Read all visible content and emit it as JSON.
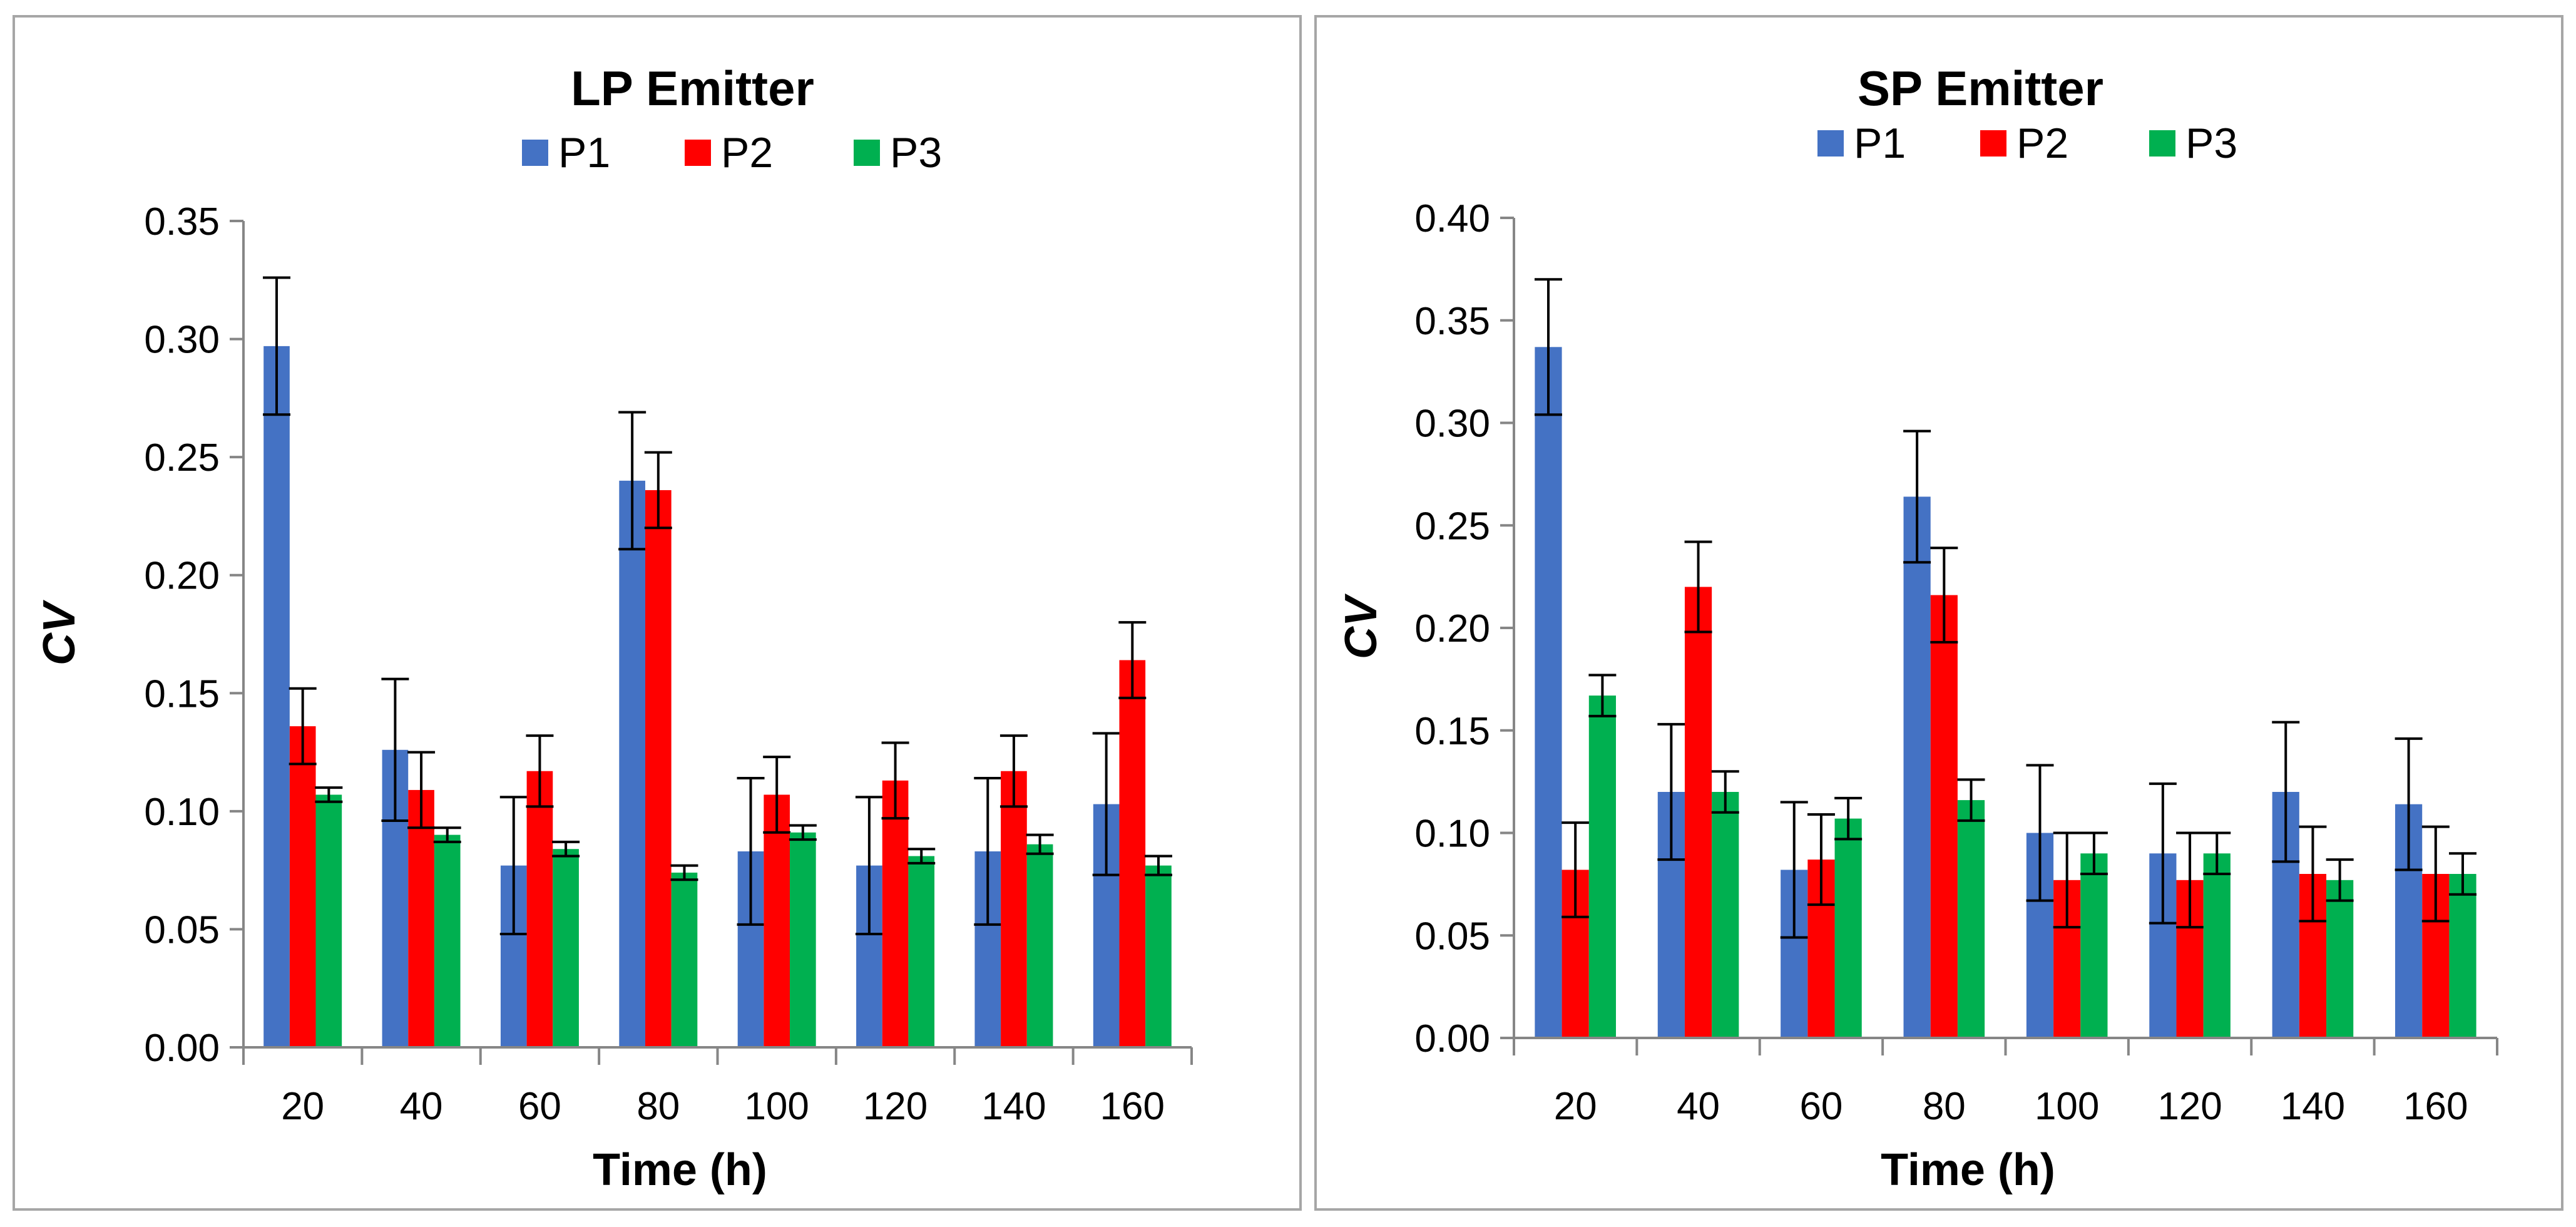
{
  "colors": {
    "P1": "#4472C4",
    "P2": "#FF0000",
    "P3": "#00B050",
    "axis": "#868686",
    "error": "#000000"
  },
  "chart_data": [
    {
      "type": "bar",
      "title": "LP Emitter",
      "xlabel": "Time (h)",
      "ylabel": "CV",
      "ylim": [
        0,
        0.35
      ],
      "ytick_step": 0.05,
      "ytick_labels": [
        "0.00",
        "0.05",
        "0.10",
        "0.15",
        "0.20",
        "0.25",
        "0.30",
        "0.35"
      ],
      "categories": [
        "20",
        "40",
        "60",
        "80",
        "100",
        "120",
        "140",
        "160"
      ],
      "legend_position": "top-center",
      "grid": false,
      "series": [
        {
          "name": "P1",
          "values": [
            0.297,
            0.126,
            0.077,
            0.24,
            0.083,
            0.077,
            0.083,
            0.103
          ],
          "errors": [
            0.029,
            0.03,
            0.029,
            0.029,
            0.031,
            0.029,
            0.031,
            0.03
          ]
        },
        {
          "name": "P2",
          "values": [
            0.136,
            0.109,
            0.117,
            0.236,
            0.107,
            0.113,
            0.117,
            0.164
          ],
          "errors": [
            0.016,
            0.016,
            0.015,
            0.016,
            0.016,
            0.016,
            0.015,
            0.016
          ]
        },
        {
          "name": "P3",
          "values": [
            0.107,
            0.09,
            0.084,
            0.074,
            0.091,
            0.081,
            0.086,
            0.077
          ],
          "errors": [
            0.003,
            0.003,
            0.003,
            0.003,
            0.003,
            0.003,
            0.004,
            0.004
          ]
        }
      ]
    },
    {
      "type": "bar",
      "title": "SP Emitter",
      "xlabel": "Time (h)",
      "ylabel": "CV",
      "ylim": [
        0,
        0.4
      ],
      "ytick_step": 0.05,
      "ytick_labels": [
        "0.00",
        "0.05",
        "0.10",
        "0.15",
        "0.20",
        "0.25",
        "0.30",
        "0.35",
        "0.40"
      ],
      "categories": [
        "20",
        "40",
        "60",
        "80",
        "100",
        "120",
        "140",
        "160"
      ],
      "legend_position": "top-center",
      "grid": false,
      "series": [
        {
          "name": "P1",
          "values": [
            0.337,
            0.12,
            0.082,
            0.264,
            0.1,
            0.09,
            0.12,
            0.114
          ],
          "errors": [
            0.033,
            0.033,
            0.033,
            0.032,
            0.033,
            0.034,
            0.034,
            0.032
          ]
        },
        {
          "name": "P2",
          "values": [
            0.082,
            0.22,
            0.087,
            0.216,
            0.077,
            0.077,
            0.08,
            0.08
          ],
          "errors": [
            0.023,
            0.022,
            0.022,
            0.023,
            0.023,
            0.023,
            0.023,
            0.023
          ]
        },
        {
          "name": "P3",
          "values": [
            0.167,
            0.12,
            0.107,
            0.116,
            0.09,
            0.09,
            0.077,
            0.08
          ],
          "errors": [
            0.01,
            0.01,
            0.01,
            0.01,
            0.01,
            0.01,
            0.01,
            0.01
          ]
        }
      ]
    }
  ]
}
